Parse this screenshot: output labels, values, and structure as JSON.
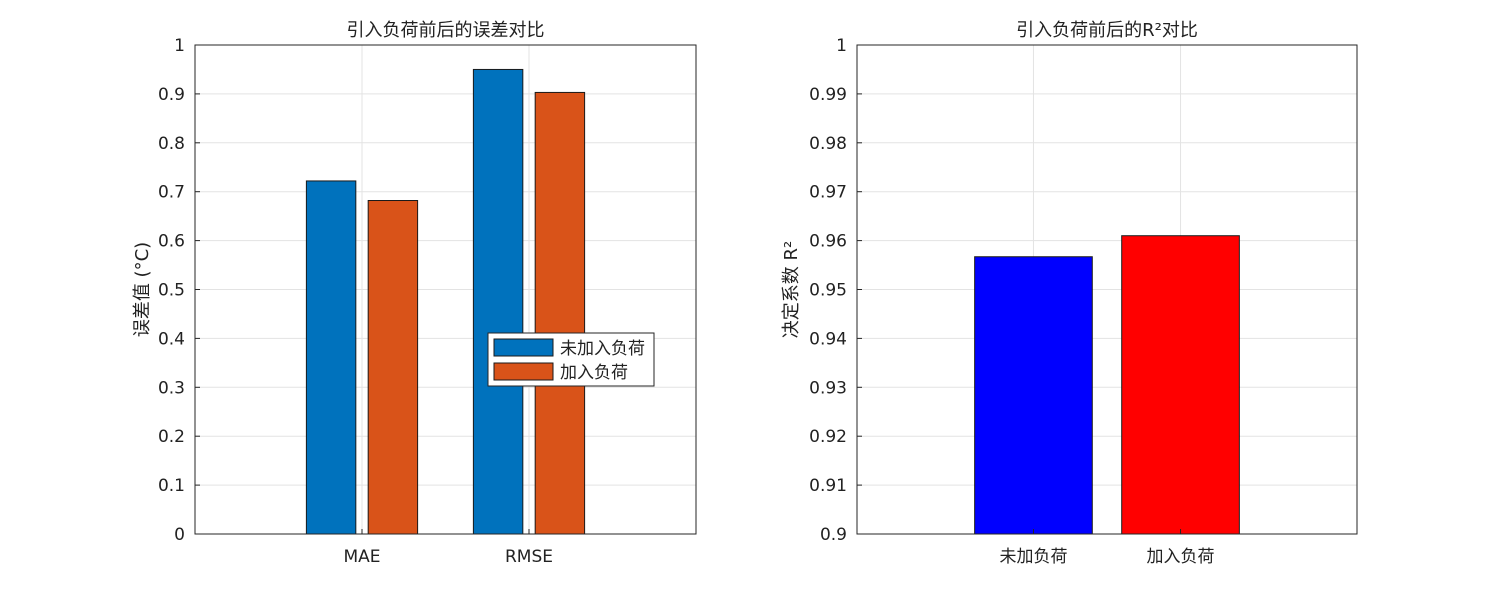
{
  "chart_data": [
    {
      "type": "bar",
      "title": "引入负荷前后的误差对比",
      "xlabel": "",
      "ylabel": "误差值 (°C)",
      "categories": [
        "MAE",
        "RMSE"
      ],
      "series": [
        {
          "name": "未加入负荷",
          "values": [
            0.722,
            0.95
          ],
          "color": "#0072BD"
        },
        {
          "name": "加入负荷",
          "values": [
            0.682,
            0.903
          ],
          "color": "#D95319"
        }
      ],
      "ylim": [
        0,
        1
      ],
      "yticks": [
        0,
        0.1,
        0.2,
        0.3,
        0.4,
        0.5,
        0.6,
        0.7,
        0.8,
        0.9,
        1
      ],
      "ytick_labels": [
        "0",
        "0.1",
        "0.2",
        "0.3",
        "0.4",
        "0.5",
        "0.6",
        "0.7",
        "0.8",
        "0.9",
        "1"
      ],
      "grid": true,
      "legend_position": "center-right"
    },
    {
      "type": "bar",
      "title": "引入负荷前后的R²对比",
      "xlabel": "",
      "ylabel": "决定系数 R²",
      "categories": [
        "未加负荷",
        "加入负荷"
      ],
      "values": [
        0.9567,
        0.961
      ],
      "colors": [
        "#0000FF",
        "#FF0000"
      ],
      "ylim": [
        0.9,
        1.0
      ],
      "yticks": [
        0.9,
        0.91,
        0.92,
        0.93,
        0.94,
        0.95,
        0.96,
        0.97,
        0.98,
        0.99,
        1
      ],
      "ytick_labels": [
        "0.9",
        "0.91",
        "0.92",
        "0.93",
        "0.94",
        "0.95",
        "0.96",
        "0.97",
        "0.98",
        "0.99",
        "1"
      ],
      "grid": true
    }
  ]
}
